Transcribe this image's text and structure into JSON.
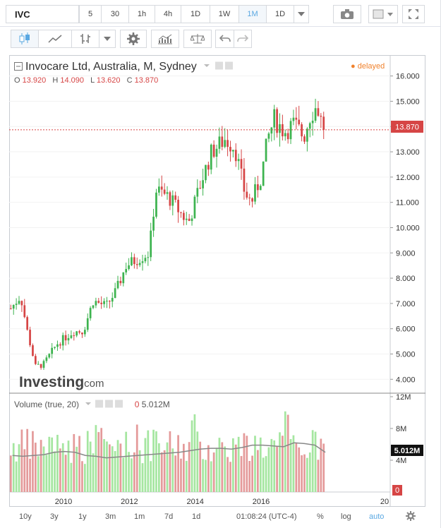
{
  "toolbar": {
    "symbol": "IVC",
    "intervals": [
      "5",
      "30",
      "1h",
      "4h",
      "1D",
      "1W",
      "1M",
      "1D"
    ],
    "active_interval": "1M"
  },
  "legend": {
    "title": "Invocare Ltd, Australia, M, Sydney",
    "o_label": "O",
    "o_value": "13.920",
    "h_label": "H",
    "h_value": "14.090",
    "l_label": "L",
    "l_value": "13.620",
    "c_label": "C",
    "c_value": "13.870",
    "delayed": "delayed"
  },
  "watermark": {
    "brand": "Investing",
    "suffix": ".com"
  },
  "volume_legend": {
    "label": "Volume (true, 20)",
    "value": "0",
    "value2": "5.012M"
  },
  "bottom": {
    "ranges": [
      "10y",
      "3y",
      "1y",
      "3m",
      "1m",
      "7d",
      "1d"
    ],
    "clock": "01:08:24 (UTC-4)",
    "pct": "%",
    "log": "log",
    "auto": "auto"
  },
  "colors": {
    "up": "#3db34f",
    "down": "#d64545",
    "up_vol": "#a5e6a0",
    "down_vol": "#e49a9a",
    "ma": "#888888",
    "accent": "#5aa8e2"
  },
  "chart_data": {
    "type": "candlestick",
    "price_axis": {
      "ticks": [
        "16.000",
        "15.000",
        "14.000",
        "13.000",
        "12.000",
        "11.000",
        "10.000",
        "9.000",
        "8.000",
        "7.000",
        "6.000",
        "5.000",
        "4.000"
      ],
      "ylim": [
        3.45,
        16.8
      ]
    },
    "last_price": "13.870",
    "volume_axis": {
      "ticks": [
        "12M",
        "8M",
        "4M"
      ],
      "ylim": [
        0,
        12
      ],
      "last_label": "5.012M",
      "zero_label": "0"
    },
    "x_axis": {
      "ticks": [
        "2010",
        "2012",
        "2014",
        "2016",
        "20"
      ],
      "start": 2008.35,
      "end": 2019.92
    },
    "anchors": [
      [
        2008.4,
        6.8
      ],
      [
        2008.7,
        7.3
      ],
      [
        2008.9,
        5.9
      ],
      [
        2009.15,
        4.5
      ],
      [
        2009.4,
        4.6
      ],
      [
        2009.8,
        5.4
      ],
      [
        2010.3,
        5.9
      ],
      [
        2010.6,
        5.9
      ],
      [
        2010.9,
        7.1
      ],
      [
        2011.3,
        6.9
      ],
      [
        2011.6,
        7.5
      ],
      [
        2011.9,
        8.5
      ],
      [
        2012.3,
        8.8
      ],
      [
        2012.6,
        9.0
      ],
      [
        2012.8,
        11.5
      ],
      [
        2013.2,
        11.2
      ],
      [
        2013.6,
        10.5
      ],
      [
        2013.8,
        10.2
      ],
      [
        2014.2,
        11.9
      ],
      [
        2014.5,
        13.0
      ],
      [
        2014.9,
        13.5
      ],
      [
        2015.2,
        13.2
      ],
      [
        2015.5,
        11.4
      ],
      [
        2015.7,
        11.0
      ],
      [
        2016.0,
        12.0
      ],
      [
        2016.2,
        13.5
      ],
      [
        2016.4,
        14.3
      ],
      [
        2016.7,
        13.8
      ],
      [
        2017.0,
        14.1
      ],
      [
        2017.3,
        13.6
      ],
      [
        2017.5,
        14.5
      ],
      [
        2017.7,
        14.8
      ],
      [
        2017.9,
        13.87
      ]
    ],
    "ma_series": [
      4.6,
      4.5,
      4.6,
      4.7,
      5.0,
      5.1,
      5.0,
      4.6,
      4.5,
      4.3,
      4.4,
      4.5,
      4.6,
      4.7,
      4.8,
      4.9,
      5.0,
      5.2,
      5.4,
      5.5,
      5.5,
      5.4,
      5.6,
      5.9,
      5.9,
      5.8,
      5.7,
      6.2,
      6.1,
      5.9,
      5.0
    ]
  }
}
